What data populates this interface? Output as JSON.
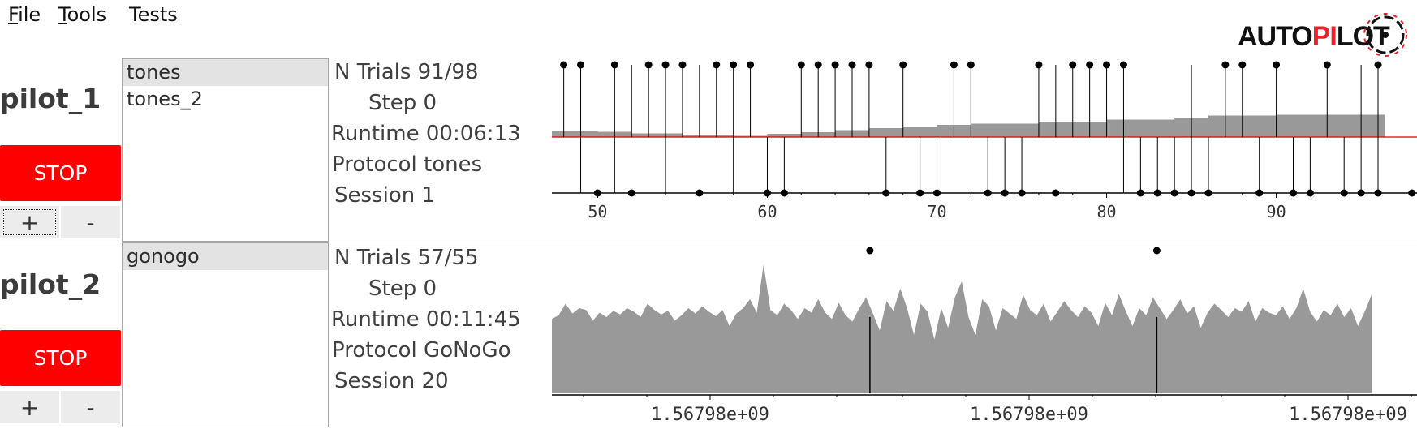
{
  "menu": {
    "file": {
      "mnemonic": "F",
      "rest": "ile"
    },
    "tools": {
      "mnemonic": "T",
      "rest": "ools"
    },
    "tests": {
      "mnemonic": "",
      "rest": "Tests"
    }
  },
  "logo": {
    "text_a": "AUTO",
    "text_b": "PI",
    "text_c": "LOT",
    "accent_color": "#e8222a"
  },
  "pilots": [
    {
      "name": "pilot_1",
      "stop_label": "STOP",
      "plus_label": "+",
      "minus_label": "-",
      "protocols": [
        "tones",
        "tones_2"
      ],
      "selected_protocol": "tones",
      "info": {
        "n_trials_label": "N Trials",
        "n_trials_value": "91/98",
        "step_label": "Step",
        "step_value": "0",
        "runtime_label": "Runtime",
        "runtime_value": "00:06:13",
        "protocol_label": "Protocol",
        "protocol_value": "tones",
        "session_label": "Session",
        "session_value": "1"
      },
      "plot": {
        "x_ticks": [
          "50",
          "60",
          "70",
          "80",
          "90"
        ],
        "xlim": [
          47.3,
          98.2
        ],
        "upper_trials": [
          48,
          49,
          51,
          52,
          53,
          54,
          55,
          56,
          57,
          58,
          59,
          62,
          63,
          64,
          65,
          66,
          68,
          71,
          72,
          76,
          77,
          78,
          79,
          80,
          81,
          85,
          87,
          88,
          90,
          93,
          95,
          96
        ],
        "upper_points": [
          48,
          49,
          51,
          53,
          54,
          55,
          57,
          58,
          59,
          62,
          63,
          64,
          65,
          66,
          68,
          71,
          72,
          76,
          78,
          79,
          80,
          81,
          87,
          88,
          90,
          93,
          96
        ],
        "lower_trials": [
          49,
          51,
          54,
          58,
          60,
          61,
          67,
          69,
          70,
          73,
          74,
          75,
          81,
          82,
          83,
          84,
          85,
          86,
          89,
          91,
          92,
          94,
          95,
          96
        ],
        "lower_points": [
          50,
          52,
          56,
          60,
          61,
          67,
          69,
          70,
          73,
          74,
          75,
          77,
          82,
          83,
          84,
          85,
          86,
          89,
          91,
          92,
          94,
          95,
          96,
          98
        ],
        "fill_steps": [
          [
            47.3,
            0.16
          ],
          [
            50,
            0.13
          ],
          [
            52,
            0.09
          ],
          [
            55,
            0.06
          ],
          [
            58,
            0.03
          ],
          [
            60,
            0.08
          ],
          [
            62,
            0.12
          ],
          [
            64,
            0.17
          ],
          [
            66,
            0.22
          ],
          [
            68,
            0.26
          ],
          [
            70,
            0.3
          ],
          [
            72,
            0.33
          ],
          [
            76,
            0.38
          ],
          [
            80,
            0.43
          ],
          [
            84,
            0.48
          ],
          [
            86,
            0.53
          ],
          [
            90,
            0.55
          ],
          [
            96.4,
            0.55
          ]
        ],
        "series_colors": {
          "fill": "#999999",
          "stems": "#000000",
          "midline": "#dd0000"
        }
      }
    },
    {
      "name": "pilot_2",
      "stop_label": "STOP",
      "plus_label": "+",
      "minus_label": "-",
      "protocols": [
        "gonogo"
      ],
      "selected_protocol": "gonogo",
      "info": {
        "n_trials_label": "N Trials",
        "n_trials_value": "57/55",
        "step_label": "Step",
        "step_value": "0",
        "runtime_label": "Runtime",
        "runtime_value": "00:11:45",
        "protocol_label": "Protocol",
        "protocol_value": "GoNoGo",
        "session_label": "Session",
        "session_value": "20"
      },
      "plot": {
        "x_ticks": [
          "1.56798e+09",
          "1.56798e+09",
          "1.56798e+09"
        ],
        "event_marks": [
          0.388,
          0.738
        ],
        "trace": [
          0.38,
          0.42,
          0.55,
          0.44,
          0.5,
          0.48,
          0.36,
          0.45,
          0.4,
          0.47,
          0.43,
          0.5,
          0.46,
          0.4,
          0.55,
          0.48,
          0.43,
          0.47,
          0.36,
          0.42,
          0.5,
          0.44,
          0.52,
          0.46,
          0.41,
          0.48,
          0.3,
          0.44,
          0.5,
          0.6,
          0.45,
          0.99,
          0.48,
          0.42,
          0.55,
          0.48,
          0.38,
          0.5,
          0.45,
          0.6,
          0.45,
          0.38,
          0.56,
          0.42,
          0.35,
          0.5,
          0.62,
          0.44,
          0.25,
          0.58,
          0.47,
          0.72,
          0.5,
          0.2,
          0.55,
          0.46,
          0.15,
          0.5,
          0.28,
          0.62,
          0.8,
          0.4,
          0.2,
          0.6,
          0.52,
          0.25,
          0.5,
          0.44,
          0.38,
          0.65,
          0.48,
          0.42,
          0.55,
          0.35,
          0.46,
          0.58,
          0.48,
          0.4,
          0.52,
          0.45,
          0.3,
          0.56,
          0.42,
          0.66,
          0.47,
          0.3,
          0.5,
          0.42,
          0.62,
          0.5,
          0.38,
          0.48,
          0.6,
          0.44,
          0.52,
          0.28,
          0.45,
          0.55,
          0.48,
          0.4,
          0.5,
          0.46,
          0.58,
          0.35,
          0.5,
          0.45,
          0.42,
          0.52,
          0.38,
          0.5,
          0.72,
          0.46,
          0.35,
          0.48,
          0.42,
          0.55,
          0.4,
          0.5,
          0.3,
          0.46,
          0.65
        ]
      }
    }
  ]
}
